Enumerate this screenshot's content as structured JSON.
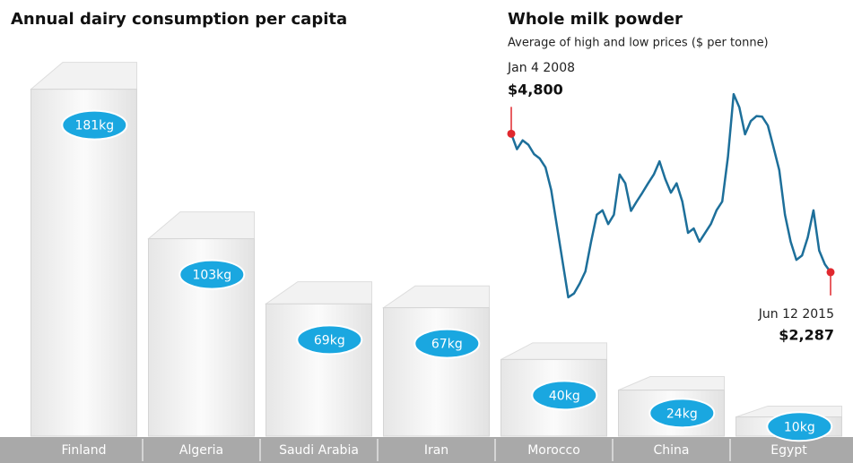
{
  "chart_data": [
    {
      "type": "bar",
      "title": "Annual dairy consumption per capita",
      "categories": [
        "Finland",
        "Algeria",
        "Saudi Arabia",
        "Iran",
        "Morocco",
        "China",
        "Egypt"
      ],
      "values": [
        181,
        103,
        69,
        67,
        40,
        24,
        10
      ],
      "value_labels": [
        "181kg",
        "103kg",
        "69kg",
        "67kg",
        "40kg",
        "24kg",
        "10kg"
      ],
      "label_color": "#1aa7e0"
    },
    {
      "type": "line",
      "title": "Whole milk powder",
      "subtitle": "Average of high and low prices ($ per tonne)",
      "color": "#1d6f9a",
      "marker_color": "#e0282e",
      "values": [
        4800,
        4520,
        4680,
        4600,
        4430,
        4350,
        4190,
        3780,
        3130,
        2480,
        1830,
        1900,
        2080,
        2300,
        2840,
        3330,
        3410,
        3160,
        3330,
        4060,
        3900,
        3400,
        3570,
        3730,
        3900,
        4060,
        4300,
        3980,
        3730,
        3900,
        3570,
        3000,
        3080,
        2840,
        3000,
        3160,
        3410,
        3570,
        4380,
        5520,
        5280,
        4790,
        5030,
        5120,
        5110,
        4950,
        4550,
        4140,
        3330,
        2840,
        2510,
        2590,
        2920,
        3410,
        2680,
        2430,
        2287
      ],
      "ylim": [
        1700,
        5700
      ],
      "annotations": [
        {
          "text": "Jan 4 2008",
          "value_label": "$4,800"
        },
        {
          "text": "Jun 12 2015",
          "value_label": "$2,287"
        }
      ]
    }
  ]
}
